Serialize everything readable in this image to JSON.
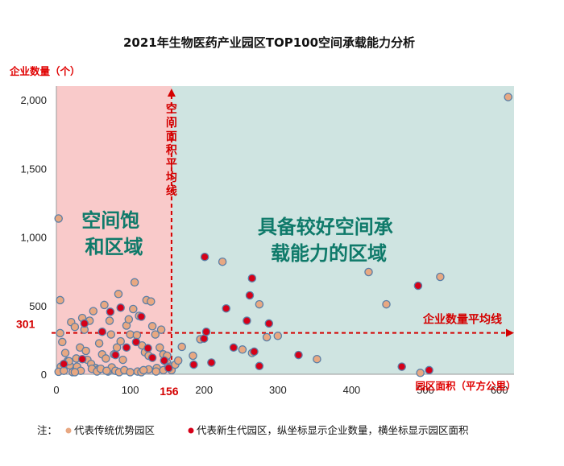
{
  "chart_data": {
    "type": "scatter",
    "title": "2021年生物医药产业园区TOP100空间承载能力分析",
    "ylabel": "企业数量（个）",
    "xlabel": "园区面积（平方公里）",
    "xlim": [
      0,
      620
    ],
    "ylim": [
      0,
      2100
    ],
    "x_ticks": [
      "0",
      "100",
      "200",
      "300",
      "400",
      "500",
      "600"
    ],
    "y_ticks": [
      "0",
      "500",
      "1,000",
      "1,500",
      "2,000"
    ],
    "grid": false,
    "reference_lines": {
      "x_value": 156,
      "x_value_label": "156",
      "x_line_label": "空间面积平均线",
      "y_value": 301,
      "y_value_label": "301",
      "y_line_label": "企业数量平均线"
    },
    "zones": {
      "left": "空间饱和区域",
      "left_lines": [
        "空间饱",
        "和区域"
      ],
      "right": "具备较好空间承载能力的区域",
      "right_lines": [
        "具备较好空间承",
        "载能力的区域"
      ]
    },
    "series": [
      {
        "name": "代表传统优势园区",
        "color": "#e8a882",
        "points": [
          [
            3,
            1135
          ],
          [
            612,
            2020
          ],
          [
            5,
            300
          ],
          [
            8,
            235
          ],
          [
            12,
            155
          ],
          [
            15,
            95
          ],
          [
            6,
            55
          ],
          [
            3,
            18
          ],
          [
            10,
            25
          ],
          [
            18,
            65
          ],
          [
            22,
            15
          ],
          [
            27,
            115
          ],
          [
            32,
            195
          ],
          [
            38,
            325
          ],
          [
            42,
            105
          ],
          [
            47,
            75
          ],
          [
            53,
            45
          ],
          [
            57,
            35
          ],
          [
            62,
            145
          ],
          [
            67,
            115
          ],
          [
            70,
            20
          ],
          [
            74,
            290
          ],
          [
            78,
            145
          ],
          [
            82,
            195
          ],
          [
            87,
            240
          ],
          [
            90,
            105
          ],
          [
            95,
            355
          ],
          [
            100,
            290
          ],
          [
            104,
            475
          ],
          [
            109,
            285
          ],
          [
            112,
            425
          ],
          [
            116,
            210
          ],
          [
            120,
            160
          ],
          [
            125,
            135
          ],
          [
            130,
            350
          ],
          [
            134,
            290
          ],
          [
            140,
            195
          ],
          [
            145,
            145
          ],
          [
            150,
            85
          ],
          [
            154,
            55
          ],
          [
            156,
            30
          ],
          [
            50,
            460
          ],
          [
            58,
            225
          ],
          [
            65,
            505
          ],
          [
            72,
            390
          ],
          [
            84,
            585
          ],
          [
            98,
            400
          ],
          [
            106,
            670
          ],
          [
            122,
            540
          ],
          [
            128,
            530
          ],
          [
            136,
            45
          ],
          [
            142,
            325
          ],
          [
            20,
            380
          ],
          [
            25,
            345
          ],
          [
            35,
            410
          ],
          [
            45,
            390
          ],
          [
            17,
            95
          ],
          [
            28,
            55
          ],
          [
            33,
            25
          ],
          [
            40,
            170
          ],
          [
            48,
            40
          ],
          [
            55,
            20
          ],
          [
            60,
            40
          ],
          [
            75,
            50
          ],
          [
            80,
            25
          ],
          [
            85,
            15
          ],
          [
            92,
            30
          ],
          [
            100,
            15
          ],
          [
            110,
            20
          ],
          [
            115,
            15
          ],
          [
            125,
            35
          ],
          [
            135,
            20
          ],
          [
            145,
            30
          ],
          [
            150,
            135
          ],
          [
            161,
            70
          ],
          [
            165,
            100
          ],
          [
            170,
            200
          ],
          [
            185,
            135
          ],
          [
            195,
            255
          ],
          [
            225,
            820
          ],
          [
            252,
            180
          ],
          [
            265,
            155
          ],
          [
            275,
            510
          ],
          [
            285,
            270
          ],
          [
            300,
            280
          ],
          [
            353,
            110
          ],
          [
            423,
            745
          ],
          [
            447,
            510
          ],
          [
            493,
            10
          ],
          [
            520,
            710
          ],
          [
            5,
            540
          ],
          [
            25,
            15
          ],
          [
            68,
            25
          ],
          [
            118,
            30
          ]
        ]
      },
      {
        "name": "代表新生代园区",
        "color": "#d60018",
        "points": [
          [
            10,
            75
          ],
          [
            35,
            110
          ],
          [
            38,
            370
          ],
          [
            62,
            310
          ],
          [
            73,
            455
          ],
          [
            80,
            140
          ],
          [
            87,
            485
          ],
          [
            95,
            195
          ],
          [
            108,
            235
          ],
          [
            115,
            420
          ],
          [
            124,
            190
          ],
          [
            130,
            120
          ],
          [
            146,
            100
          ],
          [
            152,
            45
          ],
          [
            186,
            70
          ],
          [
            200,
            260
          ],
          [
            201,
            855
          ],
          [
            203,
            310
          ],
          [
            210,
            85
          ],
          [
            230,
            480
          ],
          [
            240,
            195
          ],
          [
            258,
            390
          ],
          [
            262,
            575
          ],
          [
            265,
            700
          ],
          [
            268,
            165
          ],
          [
            275,
            60
          ],
          [
            288,
            370
          ],
          [
            328,
            140
          ],
          [
            468,
            55
          ],
          [
            490,
            645
          ],
          [
            505,
            30
          ]
        ]
      }
    ],
    "note_prefix": "注：",
    "legend_traditional": "代表传统优势园区",
    "legend_new": "代表新生代园区，纵坐标显示企业数量，横坐标显示园区面积"
  }
}
